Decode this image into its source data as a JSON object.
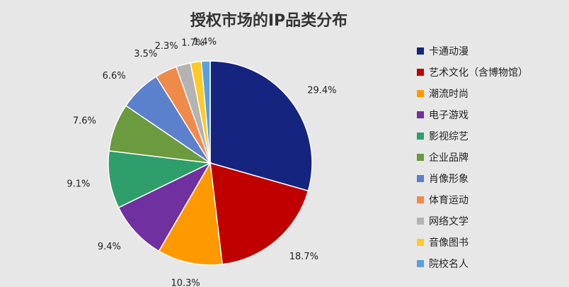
{
  "chart_data": {
    "type": "pie",
    "title": "授权市场的IP品类分布",
    "categories": [
      "卡通动漫",
      "艺术文化（含博物馆）",
      "潮流时尚",
      "电子游戏",
      "影视综艺",
      "企业品牌",
      "肖像形象",
      "体育运动",
      "网络文学",
      "音像图书",
      "院校名人"
    ],
    "values": [
      29.4,
      18.7,
      10.3,
      9.4,
      9.1,
      7.6,
      6.6,
      3.5,
      2.3,
      1.7,
      1.4
    ],
    "labels": [
      "29.4%",
      "18.7%",
      "10.3%",
      "9.4%",
      "9.1%",
      "7.6%",
      "6.6%",
      "3.5%",
      "2.3%",
      "1.7%",
      "1.4%"
    ],
    "colors": [
      "#15247f",
      "#c00000",
      "#ff9900",
      "#7030a0",
      "#2e9e6a",
      "#6c9a3f",
      "#5b80cc",
      "#f08a4b",
      "#b3b3b3",
      "#ffc926",
      "#5aa0dd"
    ],
    "legend_position": "right"
  }
}
